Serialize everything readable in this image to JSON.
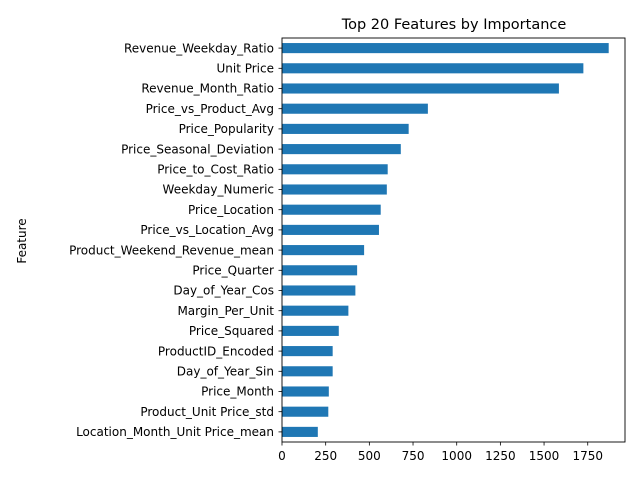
{
  "chart_data": {
    "type": "bar",
    "orientation": "horizontal",
    "title": "Top 20 Features by Importance",
    "xlabel": "",
    "ylabel": "Feature",
    "xlim": [
      0,
      1960
    ],
    "xticks": [
      0,
      250,
      500,
      750,
      1000,
      1250,
      1500,
      1750
    ],
    "grid": false,
    "bar_color": "#1f77b4",
    "categories": [
      "Revenue_Weekday_Ratio",
      "Unit Price",
      "Revenue_Month_Ratio",
      "Price_vs_Product_Avg",
      "Price_Popularity",
      "Price_Seasonal_Deviation",
      "Price_to_Cost_Ratio",
      "Weekday_Numeric",
      "Price_Location",
      "Price_vs_Location_Avg",
      "Product_Weekend_Revenue_mean",
      "Price_Quarter",
      "Day_of_Year_Cos",
      "Margin_Per_Unit",
      "Price_Squared",
      "ProductID_Encoded",
      "Day_of_Year_Sin",
      "Price_Month",
      "Product_Unit Price_std",
      "Location_Month_Unit Price_mean"
    ],
    "values": [
      1870,
      1725,
      1585,
      835,
      725,
      680,
      605,
      600,
      565,
      555,
      470,
      430,
      420,
      380,
      325,
      290,
      290,
      268,
      265,
      205
    ]
  }
}
